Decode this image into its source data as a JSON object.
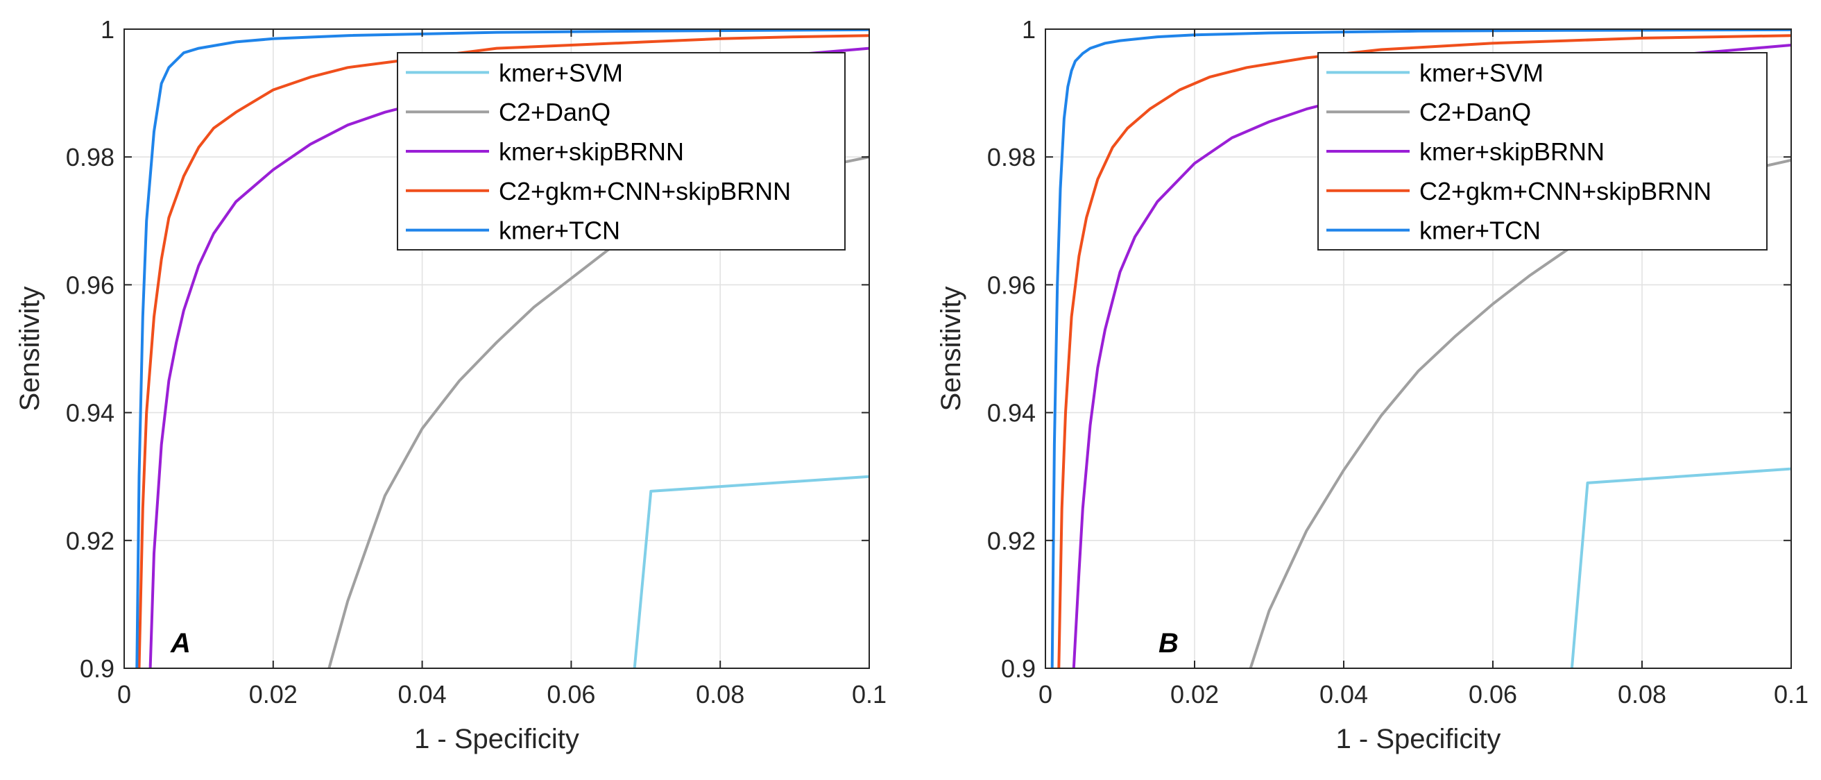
{
  "chart_data": [
    {
      "type": "line",
      "panel_label": "A",
      "title": "",
      "xlabel": "1 - Specificity",
      "ylabel": "Sensitivity",
      "xlim": [
        0,
        0.1
      ],
      "ylim": [
        0.9,
        1
      ],
      "xticks": [
        0,
        0.02,
        0.04,
        0.06,
        0.08,
        0.1
      ],
      "xtick_labels": [
        "0",
        "0.02",
        "0.04",
        "0.06",
        "0.08",
        "0.1"
      ],
      "yticks": [
        0.9,
        0.92,
        0.94,
        0.96,
        0.98,
        1
      ],
      "ytick_labels": [
        "0.9",
        "0.92",
        "0.94",
        "0.96",
        "0.98",
        "1"
      ],
      "grid": true,
      "legend_position": "top-right",
      "series": [
        {
          "name": "kmer+SVM",
          "color": "#80cfe8",
          "x": [
            0.0685,
            0.0707,
            0.1
          ],
          "y": [
            0.9,
            0.9277,
            0.93
          ]
        },
        {
          "name": "C2+DanQ",
          "color": "#a0a0a0",
          "x": [
            0.0275,
            0.03,
            0.035,
            0.04,
            0.045,
            0.05,
            0.055,
            0.06,
            0.065,
            0.07,
            0.075,
            0.08,
            0.085,
            0.09,
            0.095,
            0.1
          ],
          "y": [
            0.9,
            0.9105,
            0.927,
            0.9375,
            0.945,
            0.951,
            0.9565,
            0.961,
            0.9655,
            0.9685,
            0.9715,
            0.974,
            0.976,
            0.9778,
            0.9788,
            0.98
          ]
        },
        {
          "name": "kmer+skipBRNN",
          "color": "#9a1fd6",
          "x": [
            0.0035,
            0.004,
            0.005,
            0.006,
            0.007,
            0.008,
            0.01,
            0.012,
            0.015,
            0.02,
            0.025,
            0.03,
            0.035,
            0.04,
            0.05,
            0.06,
            0.07,
            0.08,
            0.09,
            0.1
          ],
          "y": [
            0.9,
            0.918,
            0.935,
            0.945,
            0.951,
            0.956,
            0.963,
            0.968,
            0.973,
            0.978,
            0.982,
            0.985,
            0.987,
            0.9885,
            0.9905,
            0.992,
            0.993,
            0.995,
            0.996,
            0.997
          ]
        },
        {
          "name": "C2+gkm+CNN+skipBRNN",
          "color": "#f04f1c",
          "x": [
            0.002,
            0.0025,
            0.003,
            0.004,
            0.005,
            0.006,
            0.008,
            0.01,
            0.012,
            0.015,
            0.02,
            0.025,
            0.03,
            0.04,
            0.05,
            0.06,
            0.07,
            0.08,
            0.09,
            0.1
          ],
          "y": [
            0.9,
            0.925,
            0.94,
            0.955,
            0.964,
            0.9705,
            0.977,
            0.9815,
            0.9845,
            0.987,
            0.9905,
            0.9925,
            0.994,
            0.9955,
            0.997,
            0.9975,
            0.998,
            0.9985,
            0.9988,
            0.999
          ]
        },
        {
          "name": "kmer+TCN",
          "color": "#1f84ea",
          "x": [
            0.0017,
            0.002,
            0.0025,
            0.003,
            0.004,
            0.005,
            0.006,
            0.008,
            0.01,
            0.015,
            0.02,
            0.03,
            0.05,
            0.07,
            0.1
          ],
          "y": [
            0.9,
            0.93,
            0.955,
            0.97,
            0.984,
            0.9915,
            0.994,
            0.9963,
            0.997,
            0.998,
            0.9985,
            0.999,
            0.9995,
            0.9997,
            0.9999
          ]
        }
      ]
    },
    {
      "type": "line",
      "panel_label": "B",
      "title": "",
      "xlabel": "1 - Specificity",
      "ylabel": "Sensitivity",
      "xlim": [
        0,
        0.1
      ],
      "ylim": [
        0.9,
        1
      ],
      "xticks": [
        0,
        0.02,
        0.04,
        0.06,
        0.08,
        0.1
      ],
      "xtick_labels": [
        "0",
        "0.02",
        "0.04",
        "0.06",
        "0.08",
        "0.1"
      ],
      "yticks": [
        0.9,
        0.92,
        0.94,
        0.96,
        0.98,
        1
      ],
      "ytick_labels": [
        "0.9",
        "0.92",
        "0.94",
        "0.96",
        "0.98",
        "1"
      ],
      "grid": true,
      "legend_position": "top-right",
      "series": [
        {
          "name": "kmer+SVM",
          "color": "#80cfe8",
          "x": [
            0.0706,
            0.0727,
            0.1
          ],
          "y": [
            0.9,
            0.929,
            0.9312
          ]
        },
        {
          "name": "C2+DanQ",
          "color": "#a0a0a0",
          "x": [
            0.0275,
            0.03,
            0.035,
            0.04,
            0.045,
            0.05,
            0.055,
            0.06,
            0.065,
            0.07,
            0.075,
            0.08,
            0.085,
            0.09,
            0.095,
            0.1
          ],
          "y": [
            0.9,
            0.909,
            0.9215,
            0.931,
            0.9395,
            0.9465,
            0.952,
            0.957,
            0.9615,
            0.9655,
            0.969,
            0.972,
            0.9745,
            0.9765,
            0.9782,
            0.9795
          ]
        },
        {
          "name": "kmer+skipBRNN",
          "color": "#9a1fd6",
          "x": [
            0.0038,
            0.0045,
            0.005,
            0.006,
            0.007,
            0.008,
            0.01,
            0.012,
            0.015,
            0.02,
            0.025,
            0.03,
            0.035,
            0.04,
            0.05,
            0.06,
            0.07,
            0.08,
            0.09,
            0.1
          ],
          "y": [
            0.9,
            0.915,
            0.925,
            0.938,
            0.947,
            0.953,
            0.962,
            0.9675,
            0.973,
            0.979,
            0.983,
            0.9855,
            0.9875,
            0.989,
            0.991,
            0.9925,
            0.994,
            0.9955,
            0.9965,
            0.9975
          ]
        },
        {
          "name": "C2+gkm+CNN+skipBRNN",
          "color": "#f04f1c",
          "x": [
            0.0018,
            0.0022,
            0.0027,
            0.0035,
            0.0045,
            0.0055,
            0.007,
            0.009,
            0.011,
            0.014,
            0.018,
            0.022,
            0.027,
            0.035,
            0.045,
            0.06,
            0.07,
            0.08,
            0.09,
            0.1
          ],
          "y": [
            0.9,
            0.925,
            0.94,
            0.955,
            0.9645,
            0.9705,
            0.9765,
            0.9815,
            0.9845,
            0.9875,
            0.9905,
            0.9925,
            0.994,
            0.9955,
            0.9968,
            0.9978,
            0.9982,
            0.9986,
            0.9988,
            0.999
          ]
        },
        {
          "name": "kmer+TCN",
          "color": "#1f84ea",
          "x": [
            0.0009,
            0.0012,
            0.0016,
            0.002,
            0.0025,
            0.003,
            0.0035,
            0.004,
            0.005,
            0.006,
            0.008,
            0.01,
            0.015,
            0.02,
            0.03,
            0.05,
            0.07,
            0.1
          ],
          "y": [
            0.9,
            0.935,
            0.96,
            0.975,
            0.986,
            0.991,
            0.9935,
            0.995,
            0.9962,
            0.997,
            0.9978,
            0.9982,
            0.9988,
            0.9991,
            0.9994,
            0.9997,
            0.9998,
            0.9999
          ]
        }
      ]
    }
  ]
}
